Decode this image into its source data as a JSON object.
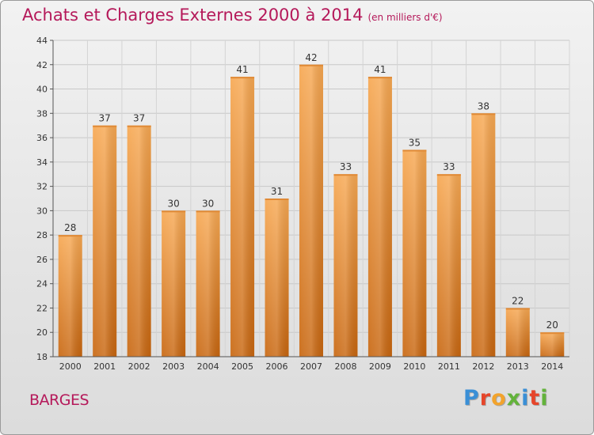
{
  "header": {
    "title": "Achats et Charges Externes 2000 à 2014",
    "unit": "(en milliers d'€)"
  },
  "footer": {
    "commune": "BARGES",
    "logo_text": "Proxiti"
  },
  "colors": {
    "title": "#b5195a",
    "bar_light": "#f5a24e",
    "bar_dark": "#c96814",
    "logo": [
      "#3a8fd6",
      "#e6452a",
      "#f2a32c",
      "#63b33b",
      "#3a8fd6",
      "#e6452a",
      "#63b33b"
    ]
  },
  "chart_data": {
    "type": "bar",
    "title": "Achats et Charges Externes 2000 à 2014",
    "subtitle": "(en milliers d'€)",
    "xlabel": "",
    "ylabel": "",
    "categories": [
      "2000",
      "2001",
      "2002",
      "2003",
      "2004",
      "2005",
      "2006",
      "2007",
      "2008",
      "2009",
      "2010",
      "2011",
      "2012",
      "2013",
      "2014"
    ],
    "values": [
      28,
      37,
      37,
      30,
      30,
      41,
      31,
      42,
      33,
      41,
      35,
      33,
      38,
      22,
      20
    ],
    "ylim": [
      18,
      44
    ],
    "yticks": [
      18,
      20,
      22,
      24,
      26,
      28,
      30,
      32,
      34,
      36,
      38,
      40,
      42,
      44
    ],
    "grid": true,
    "legend": "none"
  }
}
